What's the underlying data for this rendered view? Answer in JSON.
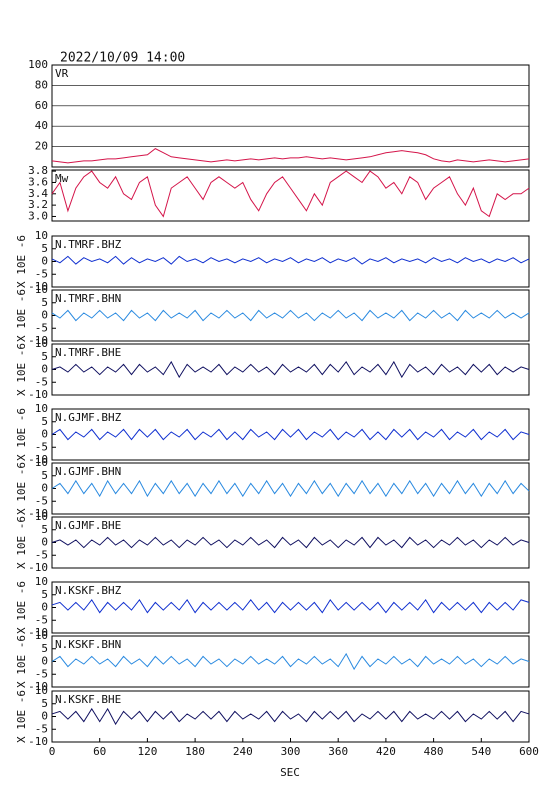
{
  "chart_data": {
    "type": "line",
    "title": "2022/10/09 14:00",
    "xlabel": "SEC",
    "x": [
      0,
      10,
      20,
      30,
      40,
      50,
      60,
      70,
      80,
      90,
      100,
      110,
      120,
      130,
      140,
      150,
      160,
      170,
      180,
      190,
      200,
      210,
      220,
      230,
      240,
      250,
      260,
      270,
      280,
      290,
      300,
      310,
      320,
      330,
      340,
      350,
      360,
      370,
      380,
      390,
      400,
      410,
      420,
      430,
      440,
      450,
      460,
      470,
      480,
      490,
      500,
      510,
      520,
      530,
      540,
      550,
      560,
      570,
      580,
      590,
      600
    ],
    "xlim": [
      0,
      600
    ],
    "xticks": [
      0,
      60,
      120,
      180,
      240,
      300,
      360,
      420,
      480,
      540,
      600
    ],
    "panels": [
      {
        "label": "VR",
        "color": "#d4154a",
        "grid": true,
        "ylim": [
          0,
          100
        ],
        "yticks": [
          20,
          40,
          60,
          80,
          100
        ],
        "values": [
          6,
          5,
          4,
          5,
          6,
          6,
          7,
          8,
          8,
          9,
          10,
          11,
          12,
          18,
          14,
          10,
          9,
          8,
          7,
          6,
          5,
          6,
          7,
          6,
          7,
          8,
          7,
          8,
          9,
          8,
          9,
          9,
          10,
          9,
          8,
          9,
          8,
          7,
          8,
          9,
          10,
          12,
          14,
          15,
          16,
          15,
          14,
          12,
          8,
          6,
          5,
          7,
          6,
          5,
          6,
          7,
          6,
          5,
          6,
          7,
          8
        ]
      },
      {
        "label": "Mw",
        "color": "#d4154a",
        "grid": false,
        "ylim": [
          2.92,
          3.82
        ],
        "yticks": [
          {
            "value": 3,
            "label": "3.0"
          },
          3.2,
          3.4,
          3.6,
          3.8
        ],
        "values": [
          3.4,
          3.6,
          3.1,
          3.5,
          3.7,
          3.8,
          3.6,
          3.5,
          3.7,
          3.4,
          3.3,
          3.6,
          3.7,
          3.2,
          3.0,
          3.5,
          3.6,
          3.7,
          3.5,
          3.3,
          3.6,
          3.7,
          3.6,
          3.5,
          3.6,
          3.3,
          3.1,
          3.4,
          3.6,
          3.7,
          3.5,
          3.3,
          3.1,
          3.4,
          3.2,
          3.6,
          3.7,
          3.8,
          3.7,
          3.6,
          3.8,
          3.7,
          3.5,
          3.6,
          3.4,
          3.7,
          3.6,
          3.3,
          3.5,
          3.6,
          3.7,
          3.4,
          3.2,
          3.5,
          3.1,
          3.0,
          3.4,
          3.3,
          3.4,
          3.4,
          3.5
        ]
      },
      {
        "label": "N.TMRF.BHZ",
        "ylabel": "X 10E -6",
        "color": "#1030d0",
        "grid": false,
        "ylim": [
          -10,
          10
        ],
        "yticks": [
          -10,
          -5,
          0,
          5,
          10
        ],
        "values": [
          1,
          -0.5,
          2,
          -1,
          1.5,
          0,
          1,
          -0.5,
          2,
          -1,
          1.5,
          -0.5,
          1,
          0,
          1.5,
          -1,
          2,
          0,
          1,
          -0.5,
          1.5,
          0,
          1,
          -0.5,
          1,
          0,
          1.5,
          -0.5,
          1,
          0,
          1.5,
          -0.5,
          1,
          0,
          1.5,
          -0.5,
          1,
          0,
          1.5,
          -1,
          1,
          0,
          1.5,
          -0.5,
          1,
          0,
          1,
          -0.5,
          1.5,
          0,
          1,
          -0.5,
          1.5,
          0,
          1,
          -0.5,
          1,
          0,
          1.5,
          -0.5,
          1
        ]
      },
      {
        "label": "N.TMRF.BHN",
        "ylabel": "X 10E -6",
        "color": "#2a8ae0",
        "grid": false,
        "ylim": [
          -10,
          10
        ],
        "yticks": [
          -10,
          -5,
          0,
          5,
          10
        ],
        "values": [
          1,
          -1,
          2,
          -2,
          1,
          -1,
          2,
          -1,
          1,
          -2,
          2,
          -1,
          1,
          -2,
          2,
          -1,
          1,
          -1,
          2,
          -2,
          1,
          -1,
          2,
          -1,
          1,
          -2,
          2,
          -1,
          1,
          -1,
          2,
          -1,
          1,
          -2,
          1,
          -1,
          2,
          -1,
          1,
          -2,
          2,
          -1,
          1,
          -1,
          2,
          -2,
          1,
          -1,
          2,
          -1,
          1,
          -2,
          2,
          -1,
          1,
          -1,
          2,
          -1,
          1,
          -1,
          1
        ]
      },
      {
        "label": "N.TMRF.BHE",
        "ylabel": "X 10E -6",
        "color": "#101060",
        "grid": false,
        "ylim": [
          -10,
          10
        ],
        "yticks": [
          -10,
          -5,
          0,
          5,
          10
        ],
        "values": [
          0,
          1,
          -1,
          2,
          -1,
          1,
          -2,
          1,
          -1,
          2,
          -2,
          2,
          -1,
          1,
          -2,
          3,
          -3,
          2,
          -1,
          1,
          -1,
          2,
          -2,
          1,
          -1,
          2,
          -1,
          1,
          -2,
          2,
          -1,
          1,
          -1,
          2,
          -2,
          2,
          -1,
          3,
          -2,
          1,
          -1,
          2,
          -2,
          3,
          -3,
          2,
          -1,
          1,
          -2,
          2,
          -1,
          1,
          -2,
          2,
          -1,
          2,
          -2,
          1,
          -1,
          1,
          0
        ]
      },
      {
        "label": "N.GJMF.BHZ",
        "ylabel": "X 10E -6",
        "color": "#1030d0",
        "grid": false,
        "ylim": [
          -10,
          10
        ],
        "yticks": [
          -10,
          -5,
          0,
          5,
          10
        ],
        "values": [
          0,
          2,
          -2,
          1,
          -1,
          2,
          -2,
          1,
          -1,
          2,
          -2,
          2,
          -1,
          2,
          -2,
          1,
          -1,
          2,
          -2,
          1,
          -1,
          2,
          -2,
          1,
          -2,
          2,
          -1,
          1,
          -2,
          2,
          -1,
          2,
          -2,
          1,
          -1,
          2,
          -2,
          1,
          -1,
          2,
          -2,
          1,
          -2,
          2,
          -1,
          2,
          -2,
          1,
          -1,
          2,
          -2,
          1,
          -1,
          2,
          -2,
          1,
          -1,
          2,
          -2,
          1,
          0
        ]
      },
      {
        "label": "N.GJMF.BHN",
        "ylabel": "X 10E -6",
        "color": "#2a8ae0",
        "grid": false,
        "ylim": [
          -10,
          10
        ],
        "yticks": [
          -10,
          -5,
          0,
          5,
          10
        ],
        "values": [
          0,
          2,
          -2,
          3,
          -2,
          2,
          -3,
          3,
          -2,
          2,
          -2,
          3,
          -3,
          2,
          -2,
          3,
          -2,
          2,
          -3,
          2,
          -2,
          3,
          -2,
          2,
          -3,
          2,
          -2,
          3,
          -2,
          2,
          -3,
          2,
          -2,
          3,
          -2,
          2,
          -3,
          2,
          -2,
          3,
          -2,
          2,
          -3,
          2,
          -2,
          3,
          -2,
          2,
          -3,
          2,
          -2,
          3,
          -2,
          2,
          -3,
          2,
          -2,
          3,
          -2,
          2,
          -1
        ]
      },
      {
        "label": "N.GJMF.BHE",
        "ylabel": "X 10E -6",
        "color": "#101060",
        "grid": false,
        "ylim": [
          -10,
          10
        ],
        "yticks": [
          -10,
          -5,
          0,
          5,
          10
        ],
        "values": [
          0,
          1,
          -1,
          1,
          -2,
          1,
          -1,
          2,
          -1,
          1,
          -2,
          1,
          -1,
          2,
          -1,
          1,
          -2,
          1,
          -1,
          2,
          -1,
          1,
          -2,
          1,
          -1,
          2,
          -1,
          1,
          -2,
          2,
          -1,
          1,
          -2,
          2,
          -1,
          1,
          -2,
          1,
          -1,
          2,
          -2,
          2,
          -1,
          1,
          -2,
          2,
          -1,
          1,
          -2,
          1,
          -1,
          2,
          -1,
          1,
          -2,
          1,
          -1,
          2,
          -1,
          1,
          0
        ]
      },
      {
        "label": "N.KSKF.BHZ",
        "ylabel": "X 10E -6",
        "color": "#1030d0",
        "grid": false,
        "ylim": [
          -10,
          10
        ],
        "yticks": [
          -10,
          -5,
          0,
          5,
          10
        ],
        "values": [
          1,
          2,
          -1,
          2,
          -1,
          3,
          -2,
          2,
          -1,
          2,
          -1,
          3,
          -2,
          2,
          -1,
          2,
          -1,
          3,
          -2,
          2,
          -1,
          2,
          -1,
          2,
          -1,
          3,
          -1,
          2,
          -2,
          2,
          -1,
          2,
          -1,
          2,
          -2,
          3,
          -1,
          2,
          -1,
          2,
          -1,
          2,
          -2,
          2,
          -1,
          2,
          -1,
          3,
          -2,
          2,
          -1,
          2,
          -1,
          2,
          -2,
          2,
          -1,
          2,
          -1,
          3,
          2
        ]
      },
      {
        "label": "N.KSKF.BHN",
        "ylabel": "X 10E -6",
        "color": "#2a8ae0",
        "grid": false,
        "ylim": [
          -10,
          10
        ],
        "yticks": [
          -10,
          -5,
          0,
          5,
          10
        ],
        "values": [
          0,
          2,
          -2,
          1,
          -1,
          2,
          -1,
          1,
          -2,
          2,
          -1,
          1,
          -2,
          2,
          -1,
          2,
          -1,
          1,
          -2,
          2,
          -1,
          1,
          -2,
          1,
          -1,
          2,
          -1,
          1,
          -1,
          2,
          -2,
          1,
          -1,
          2,
          -1,
          1,
          -2,
          3,
          -3,
          2,
          -2,
          1,
          -1,
          2,
          -1,
          1,
          -2,
          2,
          -1,
          1,
          -1,
          2,
          -1,
          1,
          -2,
          1,
          -1,
          2,
          -1,
          1,
          0
        ]
      },
      {
        "label": "N.KSKF.BHE",
        "ylabel": "X 10E -6",
        "color": "#101060",
        "grid": false,
        "ylim": [
          -10,
          10
        ],
        "yticks": [
          -10,
          -5,
          0,
          5,
          10
        ],
        "values": [
          1,
          2,
          -1,
          2,
          -2,
          3,
          -2,
          3,
          -3,
          2,
          -1,
          2,
          -2,
          2,
          -1,
          2,
          -2,
          1,
          -1,
          2,
          -1,
          2,
          -2,
          2,
          -1,
          1,
          -1,
          2,
          -2,
          2,
          -1,
          1,
          -2,
          2,
          -1,
          2,
          -1,
          2,
          -2,
          1,
          -1,
          2,
          -1,
          2,
          -2,
          2,
          -1,
          1,
          -1,
          2,
          -1,
          2,
          -2,
          1,
          -1,
          2,
          -1,
          2,
          -2,
          2,
          1
        ]
      }
    ]
  }
}
